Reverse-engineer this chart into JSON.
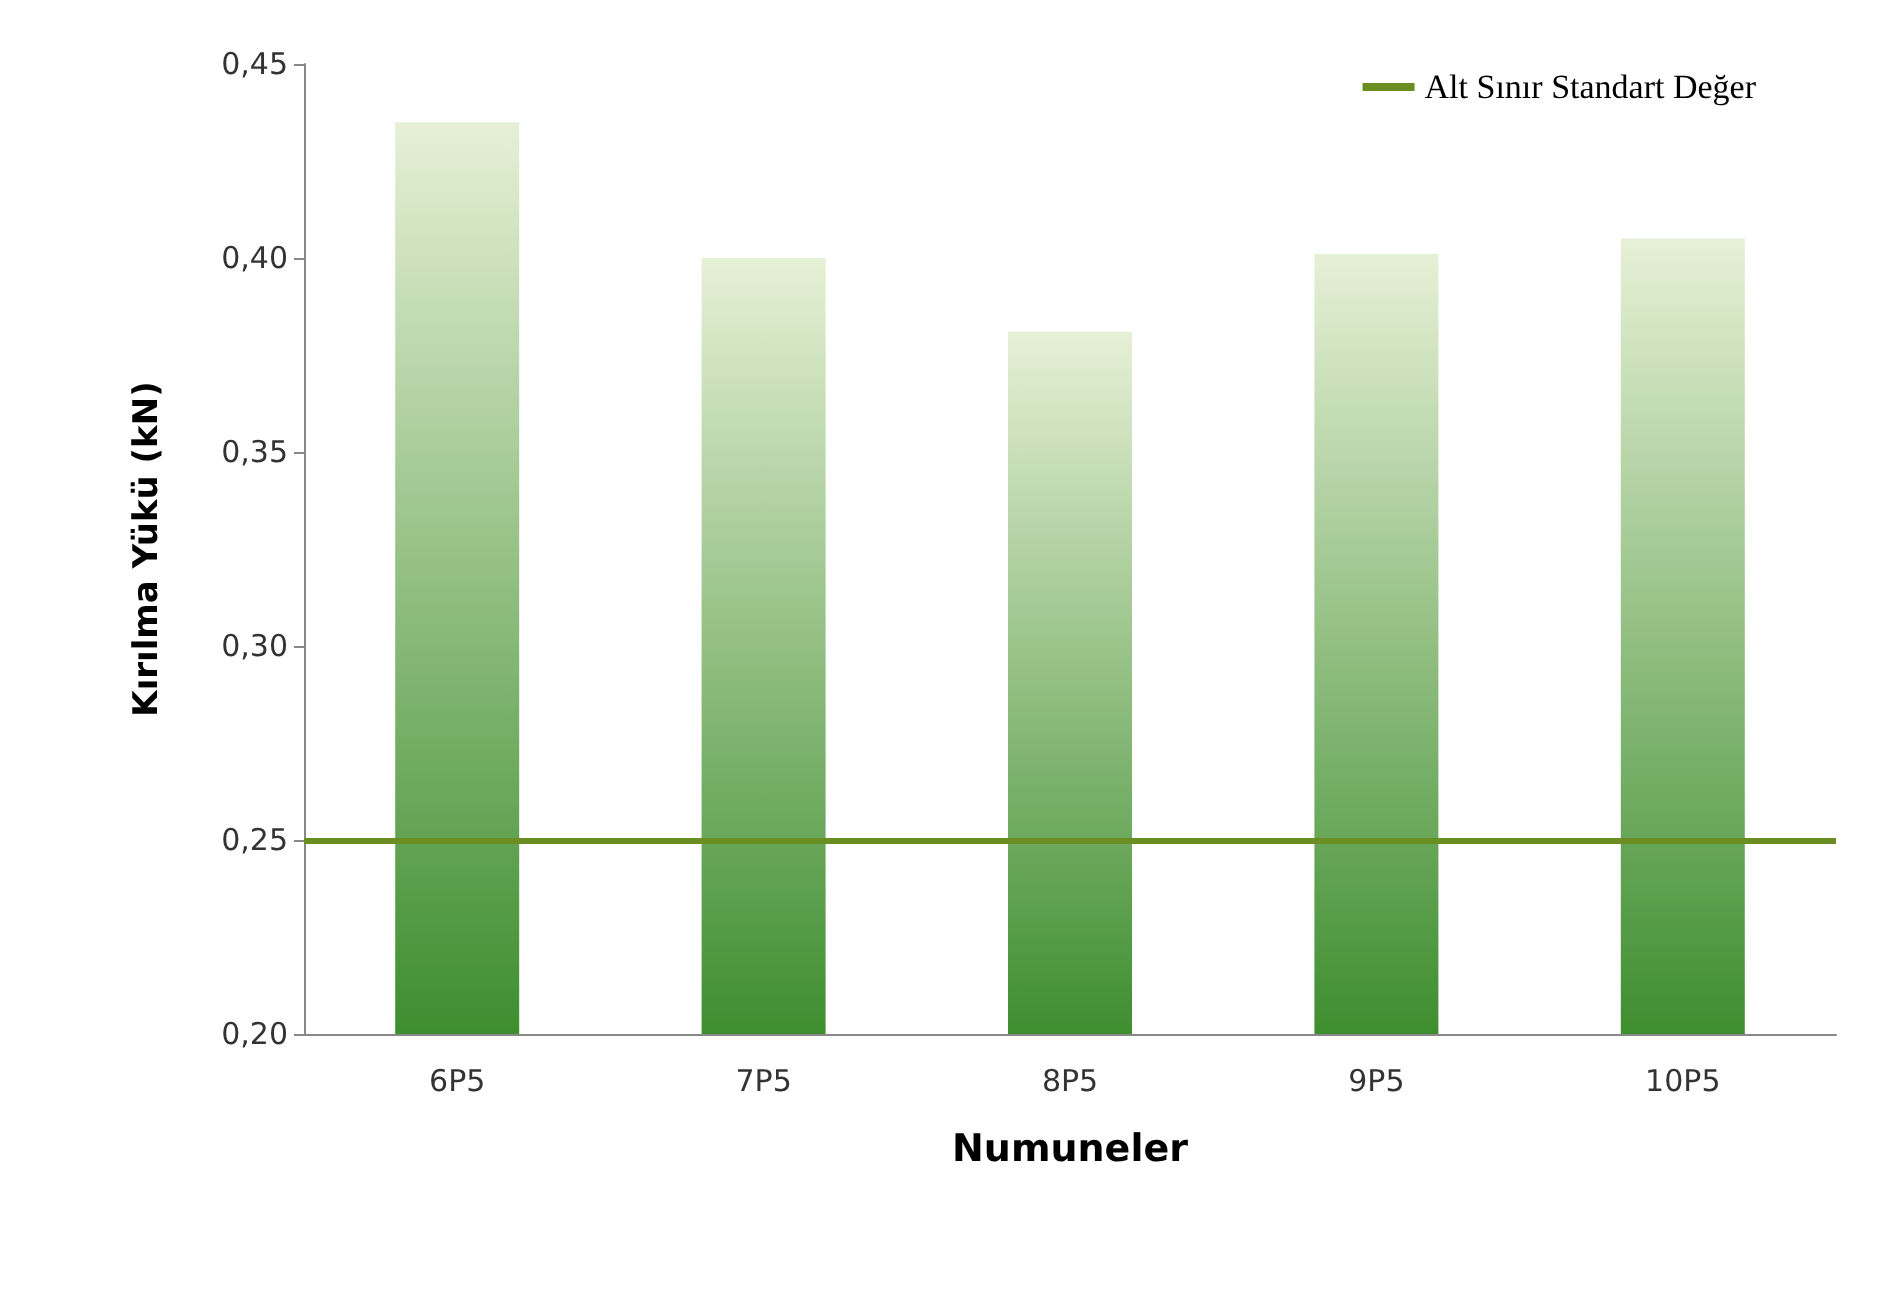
{
  "chart_data": {
    "type": "bar",
    "xlabel": "Numuneler",
    "ylabel": "Kırılma Yükü (kN)",
    "categories": [
      "6P5",
      "7P5",
      "8P5",
      "9P5",
      "10P5"
    ],
    "values": [
      0.435,
      0.4,
      0.381,
      0.401,
      0.405
    ],
    "color": "#3e8e2f",
    "ylim": [
      0.2,
      0.45
    ],
    "yticks": [
      {
        "value": 0.2,
        "label": "0,20"
      },
      {
        "value": 0.25,
        "label": "0,25"
      },
      {
        "value": 0.3,
        "label": "0,30"
      },
      {
        "value": 0.35,
        "label": "0,35"
      },
      {
        "value": 0.4,
        "label": "0,40"
      },
      {
        "value": 0.45,
        "label": "0,45"
      }
    ],
    "ref_lines": [
      {
        "axis": "y",
        "value": 0.25,
        "label": "Alt Sınır Standart Değer",
        "color": "#6b8e23"
      }
    ],
    "legend": "top right",
    "grid": false
  }
}
